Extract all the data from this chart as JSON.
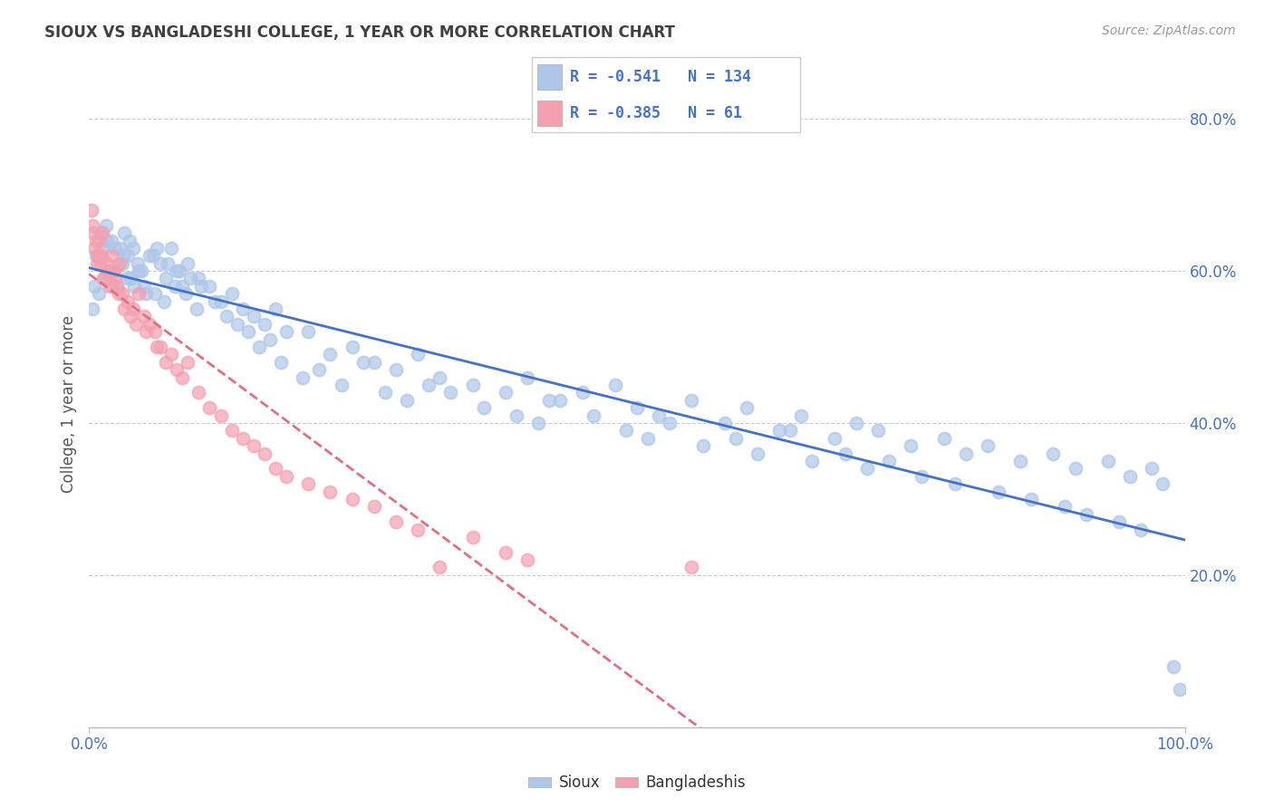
{
  "title": "SIOUX VS BANGLADESHI COLLEGE, 1 YEAR OR MORE CORRELATION CHART",
  "source": "Source: ZipAtlas.com",
  "ylabel": "College, 1 year or more",
  "legend_labels": [
    "Sioux",
    "Bangladeshis"
  ],
  "sioux_R": -0.541,
  "sioux_N": 134,
  "bangladeshi_R": -0.385,
  "bangladeshi_N": 61,
  "sioux_color": "#aec6e8",
  "bangladeshi_color": "#f4a0b0",
  "sioux_line_color": "#4472c4",
  "bangladeshi_line_color": "#e07080",
  "background_color": "#ffffff",
  "grid_color": "#cccccc",
  "title_color": "#404040",
  "axis_label_color": "#4472c4",
  "sioux_x": [
    0.5,
    0.8,
    1.0,
    1.2,
    1.5,
    1.8,
    2.0,
    2.2,
    2.5,
    2.8,
    3.0,
    3.2,
    3.5,
    3.8,
    4.0,
    4.5,
    5.0,
    5.5,
    6.0,
    6.5,
    7.0,
    7.5,
    8.0,
    8.5,
    9.0,
    10.0,
    11.0,
    12.0,
    13.0,
    14.0,
    15.0,
    16.0,
    17.0,
    18.0,
    20.0,
    22.0,
    24.0,
    26.0,
    28.0,
    30.0,
    32.0,
    35.0,
    38.0,
    40.0,
    42.0,
    45.0,
    48.0,
    50.0,
    52.0,
    55.0,
    58.0,
    60.0,
    63.0,
    65.0,
    68.0,
    70.0,
    72.0,
    75.0,
    78.0,
    80.0,
    82.0,
    85.0,
    88.0,
    90.0,
    93.0,
    95.0,
    97.0,
    98.0,
    99.0,
    99.5,
    0.3,
    0.6,
    0.9,
    1.1,
    1.4,
    1.6,
    1.9,
    2.1,
    2.4,
    2.7,
    3.1,
    3.4,
    3.7,
    4.1,
    4.4,
    4.8,
    5.2,
    5.8,
    6.2,
    6.8,
    7.2,
    7.8,
    8.2,
    8.8,
    9.2,
    9.8,
    10.2,
    11.5,
    12.5,
    13.5,
    14.5,
    15.5,
    16.5,
    17.5,
    19.5,
    21.0,
    23.0,
    25.0,
    27.0,
    29.0,
    31.0,
    33.0,
    36.0,
    39.0,
    41.0,
    43.0,
    46.0,
    49.0,
    51.0,
    53.0,
    56.0,
    59.0,
    61.0,
    64.0,
    66.0,
    69.0,
    71.0,
    73.0,
    76.0,
    79.0,
    83.0,
    86.0,
    89.0,
    91.0,
    94.0,
    96.0
  ],
  "sioux_y": [
    58.0,
    62.0,
    65.0,
    63.0,
    66.0,
    59.0,
    64.0,
    60.0,
    58.0,
    63.0,
    61.0,
    65.0,
    62.0,
    59.0,
    63.0,
    60.0,
    58.0,
    62.0,
    57.0,
    61.0,
    59.0,
    63.0,
    60.0,
    58.0,
    61.0,
    59.0,
    58.0,
    56.0,
    57.0,
    55.0,
    54.0,
    53.0,
    55.0,
    52.0,
    52.0,
    49.0,
    50.0,
    48.0,
    47.0,
    49.0,
    46.0,
    45.0,
    44.0,
    46.0,
    43.0,
    44.0,
    45.0,
    42.0,
    41.0,
    43.0,
    40.0,
    42.0,
    39.0,
    41.0,
    38.0,
    40.0,
    39.0,
    37.0,
    38.0,
    36.0,
    37.0,
    35.0,
    36.0,
    34.0,
    35.0,
    33.0,
    34.0,
    32.0,
    8.0,
    5.0,
    55.0,
    62.0,
    57.0,
    65.0,
    59.0,
    64.0,
    60.0,
    58.0,
    63.0,
    61.0,
    62.0,
    59.0,
    64.0,
    58.0,
    61.0,
    60.0,
    57.0,
    62.0,
    63.0,
    56.0,
    61.0,
    58.0,
    60.0,
    57.0,
    59.0,
    55.0,
    58.0,
    56.0,
    54.0,
    53.0,
    52.0,
    50.0,
    51.0,
    48.0,
    46.0,
    47.0,
    45.0,
    48.0,
    44.0,
    43.0,
    45.0,
    44.0,
    42.0,
    41.0,
    40.0,
    43.0,
    41.0,
    39.0,
    38.0,
    40.0,
    37.0,
    38.0,
    36.0,
    39.0,
    35.0,
    36.0,
    34.0,
    35.0,
    33.0,
    32.0,
    31.0,
    30.0,
    29.0,
    28.0,
    27.0,
    26.0
  ],
  "bangladeshi_x": [
    0.2,
    0.4,
    0.6,
    0.8,
    1.0,
    1.2,
    1.5,
    1.8,
    2.0,
    2.3,
    2.5,
    2.8,
    3.0,
    3.5,
    4.0,
    4.5,
    5.0,
    5.5,
    6.0,
    6.5,
    7.0,
    7.5,
    8.0,
    8.5,
    9.0,
    10.0,
    11.0,
    12.0,
    13.0,
    14.0,
    15.0,
    16.0,
    17.0,
    18.0,
    20.0,
    22.0,
    24.0,
    26.0,
    28.0,
    30.0,
    32.0,
    35.0,
    38.0,
    40.0,
    0.3,
    0.5,
    0.7,
    0.9,
    1.1,
    1.3,
    1.6,
    1.9,
    2.2,
    2.4,
    2.7,
    3.2,
    3.8,
    4.3,
    5.2,
    6.2,
    55.0
  ],
  "bangladeshi_y": [
    68.0,
    65.0,
    64.0,
    62.0,
    61.0,
    65.0,
    60.0,
    59.0,
    62.0,
    60.0,
    58.0,
    61.0,
    57.0,
    56.0,
    55.0,
    57.0,
    54.0,
    53.0,
    52.0,
    50.0,
    48.0,
    49.0,
    47.0,
    46.0,
    48.0,
    44.0,
    42.0,
    41.0,
    39.0,
    38.0,
    37.0,
    36.0,
    34.0,
    33.0,
    32.0,
    31.0,
    30.0,
    29.0,
    27.0,
    26.0,
    21.0,
    25.0,
    23.0,
    22.0,
    66.0,
    63.0,
    61.0,
    64.0,
    62.0,
    59.0,
    61.0,
    58.0,
    60.0,
    59.0,
    57.0,
    55.0,
    54.0,
    53.0,
    52.0,
    50.0,
    21.0
  ],
  "xlim": [
    0,
    100
  ],
  "ylim": [
    0,
    85
  ],
  "yticks": [
    20,
    40,
    60,
    80
  ],
  "ytick_labels": [
    "20.0%",
    "40.0%",
    "60.0%",
    "80.0%"
  ],
  "xtick_labels": [
    "0.0%",
    "100.0%"
  ]
}
